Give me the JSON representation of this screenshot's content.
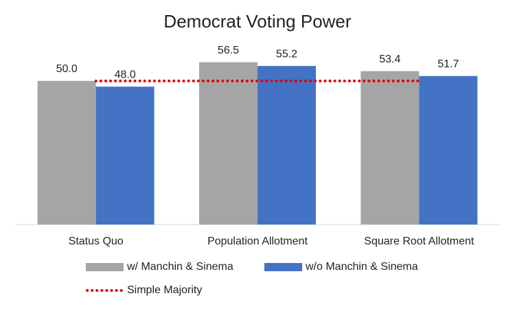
{
  "chart_data": {
    "type": "bar",
    "title": "Democrat Voting Power",
    "categories": [
      "Status Quo",
      "Population Allotment",
      "Square Root Allotment"
    ],
    "ylim": [
      0,
      60
    ],
    "series": [
      {
        "name": "w/ Manchin & Sinema",
        "color": "#a5a5a5",
        "values": [
          50,
          56.5,
          53.4
        ],
        "value_labels": [
          "50.0",
          "56.5",
          "53.4"
        ]
      },
      {
        "name": "w/o Manchin & Sinema",
        "color": "#4472c4",
        "values": [
          48,
          55.2,
          51.7
        ],
        "value_labels": [
          "48.0",
          "55.2",
          "51.7"
        ]
      },
      {
        "name": "Simple Majority",
        "type": "line",
        "color": "#e00000",
        "values": [
          50,
          50,
          50
        ]
      }
    ]
  }
}
